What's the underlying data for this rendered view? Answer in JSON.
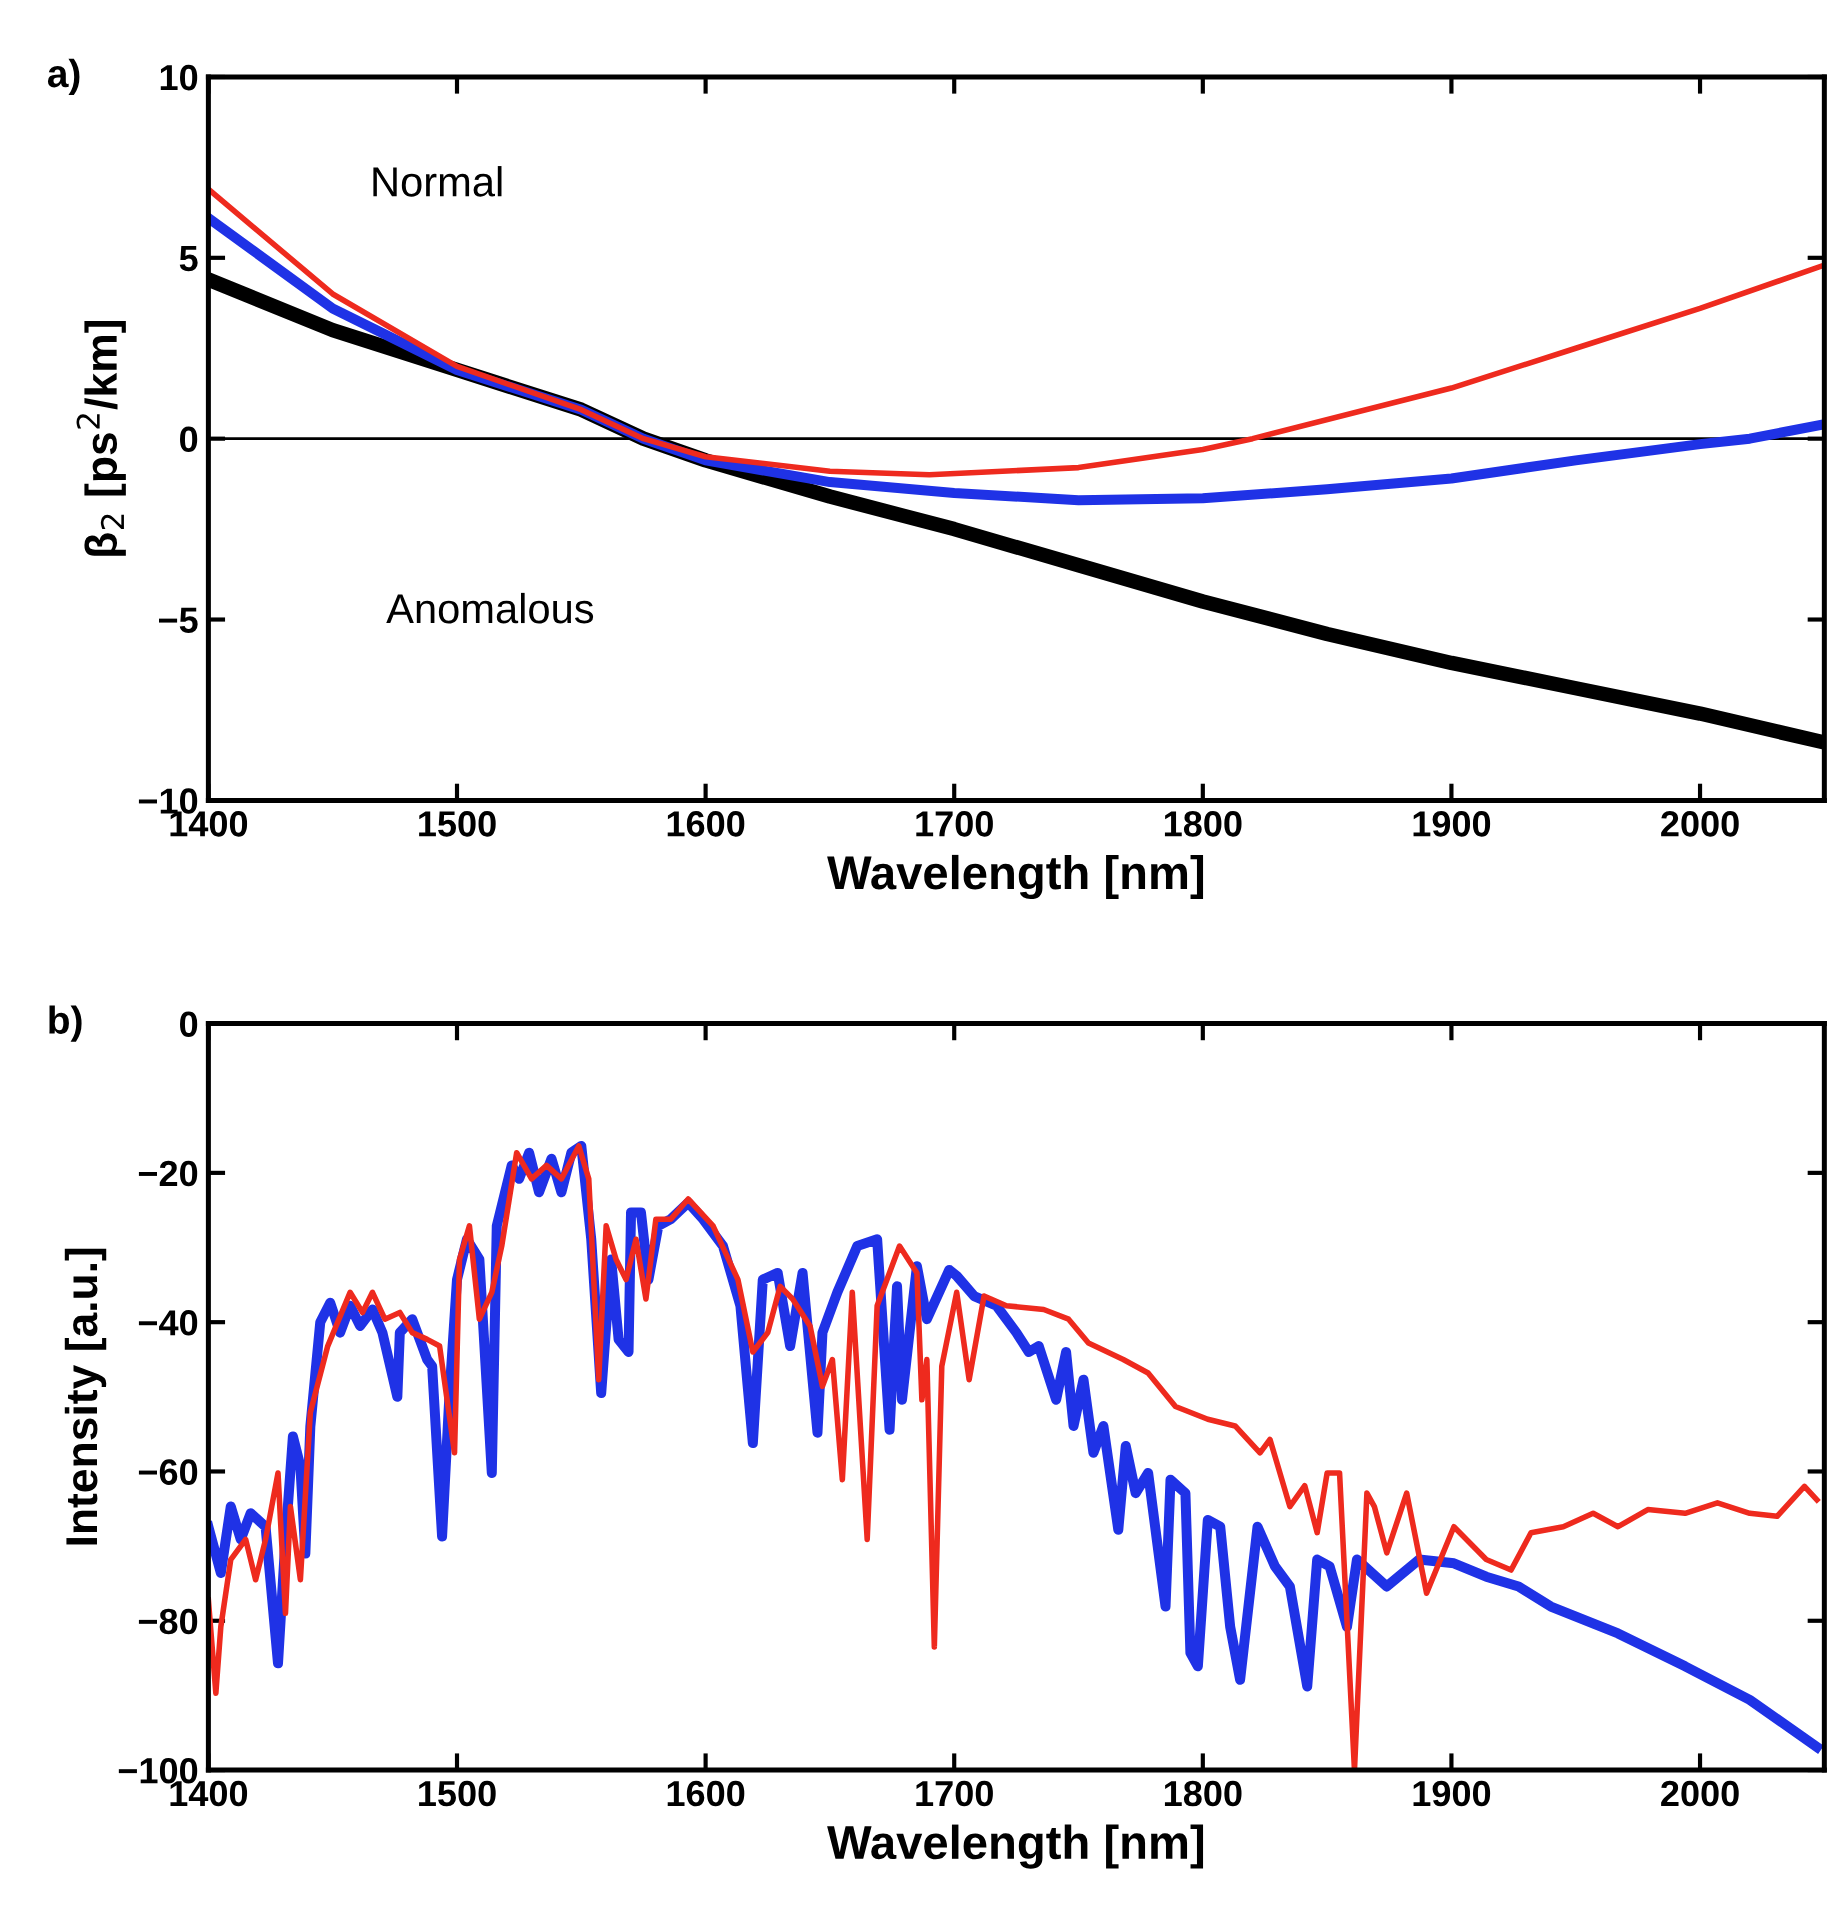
{
  "chart_data": [
    {
      "type": "line",
      "xlabel": "Wavelength [nm]",
      "ylabel": "β$_{2}$ [ps$^{2}$/km]",
      "annotations": [
        "a)",
        "Normal",
        "Anomalous"
      ],
      "xlim": [
        1400,
        2050
      ],
      "xticks": [
        1400,
        1500,
        1600,
        1700,
        1800,
        1900,
        2000
      ],
      "ylim": [
        -10,
        10
      ],
      "yticks": [
        -10,
        -5,
        0,
        5,
        10
      ],
      "ref_lines": [
        {
          "axis": "y",
          "value": 0,
          "color": "#000000"
        }
      ],
      "grid": false,
      "legend": false,
      "series": [
        {
          "color": "#000000",
          "x": [
            1400,
            1450,
            1500,
            1550,
            1575,
            1600,
            1650,
            1700,
            1750,
            1800,
            1850,
            1900,
            1950,
            2000,
            2050
          ],
          "values": [
            4.4,
            3.0,
            1.9,
            0.8,
            0,
            -0.6,
            -1.6,
            -2.5,
            -3.5,
            -4.5,
            -5.4,
            -6.2,
            -6.9,
            -7.6,
            -8.4
          ]
        },
        {
          "color": "#1f32e6",
          "x": [
            1400,
            1450,
            1500,
            1550,
            1575,
            1600,
            1650,
            1700,
            1750,
            1800,
            1850,
            1900,
            1950,
            2000,
            2020,
            2050
          ],
          "values": [
            6.1,
            3.6,
            1.9,
            0.8,
            0,
            -0.6,
            -1.2,
            -1.5,
            -1.7,
            -1.65,
            -1.4,
            -1.1,
            -0.6,
            -0.15,
            0,
            0.4
          ]
        },
        {
          "color": "#ee2a1e",
          "x": [
            1400,
            1450,
            1500,
            1550,
            1575,
            1600,
            1650,
            1690,
            1750,
            1800,
            1820,
            1900,
            1950,
            2000,
            2050
          ],
          "values": [
            6.9,
            4.0,
            2.0,
            0.8,
            0,
            -0.5,
            -0.9,
            -1.0,
            -0.8,
            -0.3,
            0,
            1.4,
            2.5,
            3.6,
            4.8
          ]
        }
      ]
    },
    {
      "type": "line",
      "xlabel": "Wavelength [nm]",
      "ylabel": "Intensity [a.u.]",
      "annotations": [
        "b)"
      ],
      "xlim": [
        1400,
        2050
      ],
      "xticks": [
        1400,
        1500,
        1600,
        1700,
        1800,
        1900,
        2000
      ],
      "ylim": [
        -100,
        0
      ],
      "yticks": [
        -100,
        -80,
        -60,
        -40,
        -20,
        0
      ],
      "grid": false,
      "legend": false,
      "series": [
        {
          "color": "#1f32e6",
          "x": [
            1400,
            1405,
            1409,
            1413,
            1417,
            1423,
            1428,
            1431,
            1434,
            1437,
            1439,
            1441,
            1445,
            1449,
            1453,
            1457,
            1461,
            1466,
            1470,
            1476,
            1477,
            1482,
            1488,
            1490,
            1494,
            1497,
            1500,
            1504,
            1509,
            1514,
            1516,
            1522,
            1525,
            1529,
            1533,
            1538,
            1542,
            1546,
            1550,
            1554,
            1558,
            1562,
            1565,
            1569,
            1570,
            1574,
            1577,
            1581,
            1586,
            1593,
            1599,
            1607,
            1614,
            1619,
            1623,
            1629,
            1634,
            1639,
            1645,
            1647,
            1653,
            1661,
            1669,
            1674,
            1677,
            1679,
            1685,
            1689,
            1698,
            1701,
            1708,
            1717,
            1725,
            1730,
            1734,
            1741,
            1745,
            1748,
            1752,
            1756,
            1760,
            1766,
            1769,
            1773,
            1778,
            1785,
            1787,
            1793,
            1795,
            1798,
            1802,
            1807,
            1811,
            1815,
            1822,
            1829,
            1835,
            1842,
            1846,
            1851,
            1858,
            1862,
            1874,
            1887,
            1901,
            1914,
            1927,
            1940,
            1967,
            1994,
            2020,
            2047
          ],
          "values": [
            -67.4,
            -73.6,
            -64.7,
            -69.1,
            -65.6,
            -67.4,
            -85.7,
            -69.1,
            -55.3,
            -59.3,
            -71,
            -54,
            -40,
            -37.4,
            -41.4,
            -37.8,
            -40.5,
            -38.3,
            -41.4,
            -50,
            -41.4,
            -39.6,
            -45,
            -45.9,
            -68.7,
            -49.5,
            -34.3,
            -28.9,
            -31.6,
            -60.2,
            -27.1,
            -19,
            -20.8,
            -17.3,
            -22.6,
            -18.1,
            -22.6,
            -17.3,
            -16.4,
            -28.9,
            -49.5,
            -31.6,
            -42.3,
            -44,
            -25.3,
            -25.3,
            -34.3,
            -27.1,
            -26.2,
            -24,
            -26.2,
            -29.8,
            -37.8,
            -56.2,
            -34.3,
            -33.4,
            -43.2,
            -33.4,
            -54.8,
            -41.4,
            -36,
            -29.8,
            -28.9,
            -54.4,
            -35.2,
            -50.4,
            -32.5,
            -39.6,
            -33,
            -33.8,
            -36.5,
            -37.8,
            -41.4,
            -44,
            -43.2,
            -50.4,
            -44,
            -53.9,
            -47.7,
            -57.5,
            -53.9,
            -67.8,
            -56.6,
            -62.9,
            -60.2,
            -78.1,
            -61.1,
            -62.9,
            -84.3,
            -86.1,
            -66.5,
            -67.4,
            -80.8,
            -87.9,
            -67.4,
            -72.7,
            -75.4,
            -88.8,
            -71.8,
            -72.7,
            -80.8,
            -71.8,
            -75.4,
            -71.8,
            -72.3,
            -74.1,
            -75.4,
            -78.1,
            -81.7,
            -86.1,
            -90.6,
            -96.9
          ]
        },
        {
          "color": "#ee2a1e",
          "x": [
            1400,
            1403,
            1405,
            1409,
            1415,
            1419,
            1423,
            1428,
            1431,
            1433,
            1437,
            1441,
            1448,
            1457,
            1462,
            1466,
            1471,
            1477,
            1482,
            1488,
            1493,
            1499,
            1501,
            1505,
            1509,
            1514,
            1518,
            1524,
            1530,
            1536,
            1542,
            1549,
            1553,
            1557,
            1560,
            1564,
            1568,
            1572,
            1576,
            1580,
            1586,
            1593,
            1603,
            1613,
            1619,
            1625,
            1630,
            1635,
            1642,
            1647,
            1651,
            1655,
            1659,
            1665,
            1669,
            1678,
            1685,
            1687,
            1689,
            1692,
            1695,
            1701,
            1706,
            1712,
            1721,
            1736,
            1746,
            1754,
            1768,
            1778,
            1789,
            1802,
            1813,
            1823,
            1827,
            1835,
            1841,
            1846,
            1850,
            1855,
            1861,
            1866,
            1869,
            1874,
            1882,
            1890,
            1901,
            1914,
            1924,
            1932,
            1945,
            1957,
            1967,
            1979,
            1994,
            2007,
            2020,
            2031,
            2042,
            2047
          ],
          "values": [
            -77.2,
            -89.7,
            -80.8,
            -71.8,
            -69.1,
            -74.5,
            -69.1,
            -60.2,
            -79,
            -64.7,
            -74.5,
            -52.1,
            -43.2,
            -36,
            -38.7,
            -36,
            -39.6,
            -38.7,
            -41.4,
            -42.3,
            -43.2,
            -57.5,
            -31.6,
            -27.1,
            -39.6,
            -36,
            -29.8,
            -17.3,
            -20.8,
            -19,
            -20.8,
            -16.4,
            -20.8,
            -47.7,
            -27.1,
            -31.6,
            -34.3,
            -28.9,
            -36.9,
            -26.2,
            -26.2,
            -23.5,
            -27.1,
            -34.3,
            -44,
            -41.4,
            -35.2,
            -36.9,
            -40.5,
            -48.6,
            -45,
            -61.1,
            -36,
            -69.1,
            -37.8,
            -29.8,
            -33.4,
            -50.4,
            -45,
            -83.5,
            -45.9,
            -36,
            -47.7,
            -36.5,
            -37.8,
            -38.3,
            -39.6,
            -42.8,
            -45,
            -46.8,
            -51.3,
            -53,
            -53.9,
            -57.5,
            -55.7,
            -64.7,
            -61.9,
            -68.2,
            -60.2,
            -60.2,
            -100,
            -62.9,
            -64.7,
            -70.9,
            -62.9,
            -76.3,
            -67.4,
            -71.8,
            -73.2,
            -68.2,
            -67.4,
            -65.6,
            -67.4,
            -65.1,
            -65.6,
            -64.2,
            -65.6,
            -66,
            -62,
            -63.8
          ]
        }
      ]
    }
  ]
}
